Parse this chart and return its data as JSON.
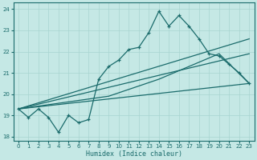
{
  "xlabel": "Humidex (Indice chaleur)",
  "ylabel": "",
  "bg_color": "#c5e8e5",
  "line_color": "#1a6b6b",
  "grid_color": "#a8d4d0",
  "xlim": [
    -0.5,
    23.5
  ],
  "ylim": [
    17.8,
    24.3
  ],
  "yticks": [
    18,
    19,
    20,
    21,
    22,
    23,
    24
  ],
  "xticks": [
    0,
    1,
    2,
    3,
    4,
    5,
    6,
    7,
    8,
    9,
    10,
    11,
    12,
    13,
    14,
    15,
    16,
    17,
    18,
    19,
    20,
    21,
    22,
    23
  ],
  "line1_x": [
    0,
    1,
    2,
    3,
    4,
    5,
    6,
    7,
    8,
    9,
    10,
    11,
    12,
    13,
    14,
    15,
    16,
    17,
    18,
    19,
    20,
    21,
    22,
    23
  ],
  "line1_y": [
    19.3,
    18.9,
    19.3,
    18.9,
    18.2,
    19.0,
    18.65,
    18.8,
    20.7,
    21.3,
    21.6,
    22.1,
    22.2,
    22.9,
    23.9,
    23.2,
    23.7,
    23.2,
    22.6,
    21.9,
    21.8,
    21.4,
    21.0,
    20.5
  ],
  "line2_x": [
    0,
    23
  ],
  "line2_y": [
    19.3,
    22.6
  ],
  "line3_x": [
    0,
    9,
    14,
    20,
    23
  ],
  "line3_y": [
    19.3,
    19.9,
    20.7,
    21.9,
    20.5
  ],
  "line4_x": [
    0,
    23
  ],
  "line4_y": [
    19.3,
    21.9
  ],
  "line5_x": [
    0,
    23
  ],
  "line5_y": [
    19.3,
    20.5
  ]
}
